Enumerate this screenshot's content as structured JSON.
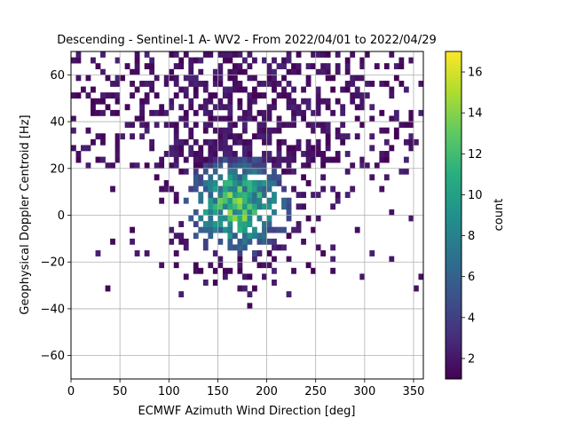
{
  "chart_data": {
    "type": "heatmap",
    "title": "Descending - Sentinel-1 A- WV2 - From 2022/04/01 to 2022/04/29",
    "xlabel": "ECMWF Azimuth Wind Direction [deg]",
    "ylabel": "Geophysical Doppler Centroid [Hz]",
    "xlim": [
      0,
      360
    ],
    "ylim": [
      -70,
      70
    ],
    "xticks": [
      "0",
      "50",
      "100",
      "150",
      "200",
      "250",
      "300",
      "350"
    ],
    "yticks": [
      "−60",
      "−40",
      "−20",
      "0",
      "20",
      "40",
      "60"
    ],
    "grid": true,
    "colormap": "viridis",
    "bin_width_deg": 5,
    "bin_height_hz": 2.5,
    "colorbar": {
      "label": "count",
      "range": [
        1,
        17
      ],
      "ticks": [
        "2",
        "4",
        "6",
        "8",
        "10",
        "12",
        "14",
        "16"
      ]
    },
    "distribution": {
      "core_center_deg": 170,
      "core_center_hz": 4,
      "core_peak_count": 17,
      "upper_band_hz": [
        20,
        70
      ],
      "lower_extent_hz": -36
    }
  }
}
